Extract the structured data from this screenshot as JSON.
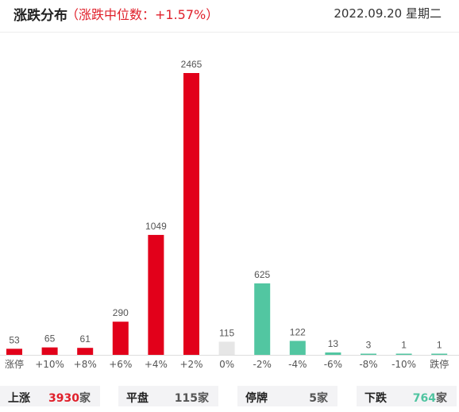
{
  "header": {
    "title": "涨跌分布",
    "median_text": "（涨跌中位数：+1.57%）",
    "date": "2022.09.20 星期二"
  },
  "colors": {
    "up": "#e2001a",
    "flat": "#e6e6e6",
    "down": "#52c6a1",
    "axis": "#dddddd"
  },
  "chart_data": {
    "type": "bar",
    "categories": [
      "涨停",
      "+10%",
      "+8%",
      "+6%",
      "+4%",
      "+2%",
      "0%",
      "-2%",
      "-4%",
      "-6%",
      "-8%",
      "-10%",
      "跌停"
    ],
    "values": [
      53,
      65,
      61,
      290,
      1049,
      2465,
      115,
      625,
      122,
      13,
      3,
      1,
      1
    ],
    "bar_colors": [
      "#e2001a",
      "#e2001a",
      "#e2001a",
      "#e2001a",
      "#e2001a",
      "#e2001a",
      "#e6e6e6",
      "#52c6a1",
      "#52c6a1",
      "#52c6a1",
      "#52c6a1",
      "#52c6a1",
      "#52c6a1"
    ],
    "title": "",
    "xlabel": "",
    "ylabel": "",
    "grid": false,
    "legend": "none"
  },
  "footer": {
    "up": {
      "label": "上涨",
      "value": "3930",
      "unit": "家"
    },
    "flat": {
      "label": "平盘",
      "value": "115",
      "unit": "家"
    },
    "halt": {
      "label": "停牌",
      "value": "5",
      "unit": "家"
    },
    "down": {
      "label": "下跌",
      "value": "764",
      "unit": "家"
    }
  }
}
